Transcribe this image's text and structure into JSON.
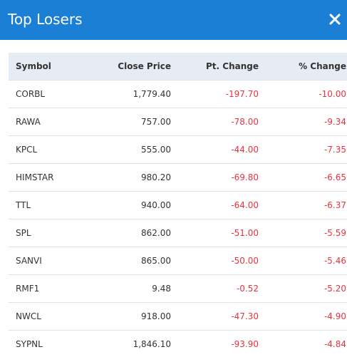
{
  "modal": {
    "title": "Top Losers",
    "close_icon": "close-icon"
  },
  "table": {
    "headers": {
      "symbol": "Symbol",
      "close_price": "Close Price",
      "pt_change": "Pt. Change",
      "pct_change": "% Change"
    },
    "rows": [
      {
        "symbol": "CORBL",
        "close_price": "1,779.40",
        "pt_change": "-197.70",
        "pct_change": "-10.00"
      },
      {
        "symbol": "RAWA",
        "close_price": "757.00",
        "pt_change": "-78.00",
        "pct_change": "-9.34"
      },
      {
        "symbol": "KPCL",
        "close_price": "555.00",
        "pt_change": "-44.00",
        "pct_change": "-7.35"
      },
      {
        "symbol": "HIMSTAR",
        "close_price": "980.20",
        "pt_change": "-69.80",
        "pct_change": "-6.65"
      },
      {
        "symbol": "TTL",
        "close_price": "940.00",
        "pt_change": "-64.00",
        "pct_change": "-6.37"
      },
      {
        "symbol": "SPL",
        "close_price": "862.00",
        "pt_change": "-51.00",
        "pct_change": "-5.59"
      },
      {
        "symbol": "SANVI",
        "close_price": "865.00",
        "pt_change": "-50.00",
        "pct_change": "-5.46"
      },
      {
        "symbol": "RMF1",
        "close_price": "9.48",
        "pt_change": "-0.52",
        "pct_change": "-5.20"
      },
      {
        "symbol": "NWCL",
        "close_price": "918.00",
        "pt_change": "-47.30",
        "pct_change": "-4.90"
      },
      {
        "symbol": "SYPNL",
        "close_price": "1,846.10",
        "pt_change": "-93.90",
        "pct_change": "-4.84"
      }
    ]
  },
  "colors": {
    "header_bg": "#1c7fd6",
    "table_header_bg": "#e5ecf4",
    "negative": "#e8333e"
  }
}
